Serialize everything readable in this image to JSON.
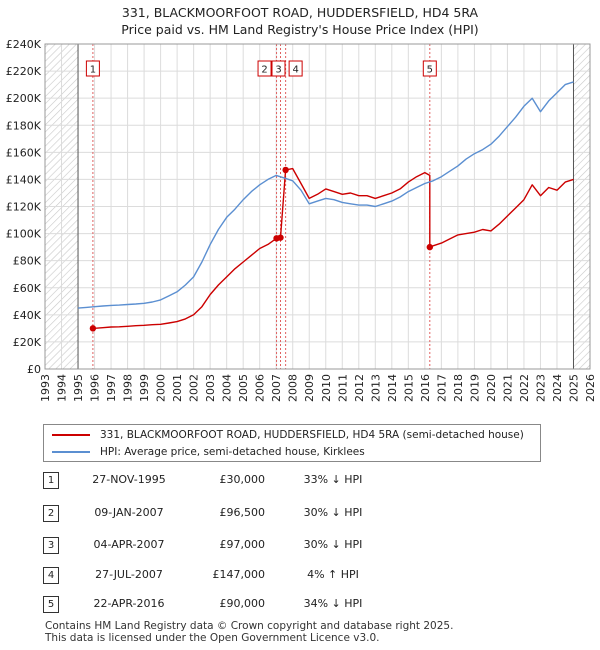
{
  "title_line1": "331, BLACKMOORFOOT ROAD, HUDDERSFIELD, HD4 5RA",
  "title_line2": "Price paid vs. HM Land Registry's House Price Index (HPI)",
  "chart_data": {
    "type": "line",
    "title": "331, BLACKMOORFOOT ROAD, HUDDERSFIELD, HD4 5RA — Price paid vs. HM Land Registry's House Price Index (HPI)",
    "xlim": [
      1993,
      2026
    ],
    "ylim": [
      0,
      240000
    ],
    "x_ticks": [
      1993,
      1994,
      1995,
      1996,
      1997,
      1998,
      1999,
      2000,
      2001,
      2002,
      2003,
      2004,
      2005,
      2006,
      2007,
      2008,
      2009,
      2010,
      2011,
      2012,
      2013,
      2014,
      2015,
      2016,
      2017,
      2018,
      2019,
      2020,
      2021,
      2022,
      2023,
      2024,
      2025,
      2026
    ],
    "y_ticks": [
      0,
      20000,
      40000,
      60000,
      80000,
      100000,
      120000,
      140000,
      160000,
      180000,
      200000,
      220000,
      240000
    ],
    "y_tick_labels": [
      "£0",
      "£20K",
      "£40K",
      "£60K",
      "£80K",
      "£100K",
      "£120K",
      "£140K",
      "£160K",
      "£180K",
      "£200K",
      "£220K",
      "£240K"
    ],
    "grid": true,
    "hatched_ranges": [
      [
        1993,
        1995.0
      ],
      [
        2025.0,
        2026
      ]
    ],
    "series": [
      {
        "name": "331, BLACKMOORFOOT ROAD, HUDDERSFIELD, HD4 5RA (semi-detached house)",
        "color": "#cc0000",
        "x": [
          1995.9,
          1996.5,
          1997.0,
          1997.5,
          1998.0,
          1998.5,
          1999.0,
          1999.5,
          2000.0,
          2000.5,
          2001.0,
          2001.5,
          2002.0,
          2002.5,
          2003.0,
          2003.5,
          2004.0,
          2004.5,
          2005.0,
          2005.5,
          2006.0,
          2006.5,
          2007.02,
          2007.26,
          2007.26,
          2007.57,
          2008.0,
          2008.5,
          2009.0,
          2009.5,
          2010.0,
          2010.5,
          2011.0,
          2011.5,
          2012.0,
          2012.5,
          2013.0,
          2013.5,
          2014.0,
          2014.5,
          2015.0,
          2015.5,
          2016.0,
          2016.3,
          2016.3,
          2016.5,
          2017.0,
          2017.5,
          2018.0,
          2018.5,
          2019.0,
          2019.5,
          2020.0,
          2020.5,
          2021.0,
          2021.5,
          2022.0,
          2022.5,
          2023.0,
          2023.5,
          2024.0,
          2024.5,
          2025.0
        ],
        "y": [
          30000,
          30500,
          31000,
          31200,
          31500,
          32000,
          32300,
          32700,
          33000,
          34000,
          35000,
          37000,
          40000,
          46000,
          55000,
          62000,
          68000,
          74000,
          79000,
          84000,
          89000,
          92000,
          96500,
          97000,
          97000,
          147000,
          148000,
          137000,
          126000,
          129000,
          133000,
          131000,
          129000,
          130000,
          128000,
          128000,
          126000,
          128000,
          130000,
          133000,
          138000,
          142000,
          145000,
          143000,
          90000,
          91000,
          93000,
          96000,
          99000,
          100000,
          101000,
          103000,
          102000,
          107000,
          113000,
          119000,
          125000,
          136000,
          128000,
          134000,
          132000,
          138000,
          140000
        ]
      },
      {
        "name": "HPI: Average price, semi-detached house, Kirklees",
        "color": "#5b8fd1",
        "x": [
          1995.0,
          1995.5,
          1996.0,
          1996.5,
          1997.0,
          1997.5,
          1998.0,
          1998.5,
          1999.0,
          1999.5,
          2000.0,
          2000.5,
          2001.0,
          2001.5,
          2002.0,
          2002.5,
          2003.0,
          2003.5,
          2004.0,
          2004.5,
          2005.0,
          2005.5,
          2006.0,
          2006.5,
          2007.0,
          2007.5,
          2008.0,
          2008.5,
          2009.0,
          2009.5,
          2010.0,
          2010.5,
          2011.0,
          2011.5,
          2012.0,
          2012.5,
          2013.0,
          2013.5,
          2014.0,
          2014.5,
          2015.0,
          2015.5,
          2016.0,
          2016.5,
          2017.0,
          2017.5,
          2018.0,
          2018.5,
          2019.0,
          2019.5,
          2020.0,
          2020.5,
          2021.0,
          2021.5,
          2022.0,
          2022.5,
          2023.0,
          2023.5,
          2024.0,
          2024.5,
          2025.0
        ],
        "y": [
          45000,
          45500,
          46000,
          46500,
          47000,
          47200,
          47600,
          48000,
          48500,
          49500,
          51000,
          54000,
          57000,
          62000,
          68000,
          79000,
          92000,
          103000,
          112000,
          118000,
          125000,
          131000,
          136000,
          140000,
          143000,
          141000,
          139000,
          132000,
          122000,
          124000,
          126000,
          125000,
          123000,
          122000,
          121000,
          121000,
          120000,
          122000,
          124000,
          127000,
          131000,
          134000,
          137000,
          139000,
          142000,
          146000,
          150000,
          155000,
          159000,
          162000,
          166000,
          172000,
          179000,
          186000,
          194000,
          200000,
          190000,
          198000,
          204000,
          210000,
          212000
        ]
      }
    ],
    "sales": [
      {
        "label": "1",
        "x": 1995.9,
        "y": 30000
      },
      {
        "label": "2",
        "x": 2007.02,
        "y": 96500
      },
      {
        "label": "3",
        "x": 2007.26,
        "y": 97000
      },
      {
        "label": "4",
        "x": 2007.57,
        "y": 147000
      },
      {
        "label": "5",
        "x": 2016.3,
        "y": 90000
      }
    ]
  },
  "legend": {
    "property": "331, BLACKMOORFOOT ROAD, HUDDERSFIELD, HD4 5RA (semi-detached house)",
    "hpi": "HPI: Average price, semi-detached house, Kirklees"
  },
  "sales_table": [
    {
      "num": "1",
      "date": "27-NOV-1995",
      "price": "£30,000",
      "hpi": "33% ↓ HPI"
    },
    {
      "num": "2",
      "date": "09-JAN-2007",
      "price": "£96,500",
      "hpi": "30% ↓ HPI"
    },
    {
      "num": "3",
      "date": "04-APR-2007",
      "price": "£97,000",
      "hpi": "30% ↓ HPI"
    },
    {
      "num": "4",
      "date": "27-JUL-2007",
      "price": "£147,000",
      "hpi": "4% ↑ HPI"
    },
    {
      "num": "5",
      "date": "22-APR-2016",
      "price": "£90,000",
      "hpi": "34% ↓ HPI"
    }
  ],
  "footer": {
    "line1": "Contains HM Land Registry data © Crown copyright and database right 2025.",
    "line2": "This data is licensed under the Open Government Licence v3.0."
  }
}
